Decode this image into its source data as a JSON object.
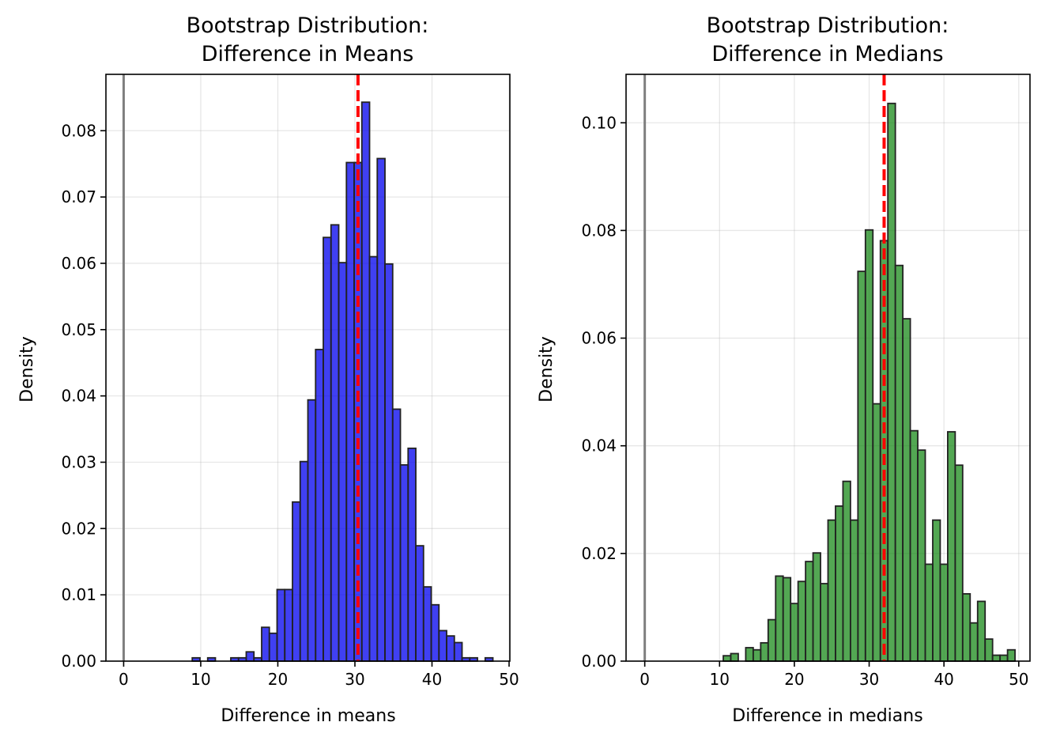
{
  "chart_data": [
    {
      "type": "bar",
      "title": [
        "Bootstrap Distribution:",
        "Difference in Means"
      ],
      "xlabel": "Difference in means",
      "ylabel": "Density",
      "xlim": [
        -2.3,
        50.1
      ],
      "ylim": [
        0,
        0.0885
      ],
      "xticks": [
        0,
        10,
        20,
        30,
        40,
        50
      ],
      "yticks": [
        0.0,
        0.01,
        0.02,
        0.03,
        0.04,
        0.05,
        0.06,
        0.07,
        0.08
      ],
      "yticks_decimals": 2,
      "grid": true,
      "bar_color": "#0000ee",
      "edge_color": "#222222",
      "bin_edges": [
        8.9,
        9.9,
        10.9,
        11.9,
        12.9,
        13.9,
        14.9,
        15.9,
        16.9,
        17.9,
        18.9,
        19.9,
        20.9,
        21.9,
        22.9,
        23.9,
        24.9,
        25.9,
        26.9,
        27.9,
        28.9,
        29.9,
        30.9,
        31.9,
        32.9,
        33.9,
        34.9,
        35.9,
        36.9,
        37.9,
        38.9,
        39.9,
        40.9,
        41.9,
        42.9,
        43.9,
        44.9,
        45.9,
        46.9,
        47.9
      ],
      "values": [
        0.0005,
        0,
        0.0005,
        0,
        0,
        0.0005,
        0.0005,
        0.0014,
        0.0005,
        0.0051,
        0.0042,
        0.0108,
        0.0108,
        0.024,
        0.0301,
        0.0394,
        0.047,
        0.0639,
        0.0658,
        0.0601,
        0.0752,
        0.0752,
        0.0843,
        0.061,
        0.0758,
        0.0599,
        0.038,
        0.0296,
        0.0321,
        0.0174,
        0.0112,
        0.0085,
        0.0046,
        0.0038,
        0.0028,
        0.0005,
        0.0005,
        0,
        0.0005
      ],
      "reference_line": {
        "x": 0,
        "color": "#7f7f7f"
      },
      "observed_line": {
        "x": 30.4,
        "color": "#ff0000"
      }
    },
    {
      "type": "bar",
      "title": [
        "Bootstrap Distribution:",
        "Difference in Medians"
      ],
      "xlabel": "Difference in medians",
      "ylabel": "Density",
      "xlim": [
        -2.5,
        51.5
      ],
      "ylim": [
        0,
        0.109
      ],
      "xticks": [
        0,
        10,
        20,
        30,
        40,
        50
      ],
      "yticks": [
        0.0,
        0.02,
        0.04,
        0.06,
        0.08,
        0.1
      ],
      "yticks_decimals": 2,
      "grid": true,
      "bar_color": "#1a8a1a",
      "edge_color": "#222222",
      "bin_edges": [
        10.5,
        11.5,
        12.5,
        13.5,
        14.5,
        15.5,
        16.5,
        17.5,
        18.5,
        19.5,
        20.5,
        21.5,
        22.5,
        23.5,
        24.5,
        25.5,
        26.5,
        27.5,
        28.5,
        29.5,
        30.5,
        31.5,
        32.5,
        33.5,
        34.5,
        35.5,
        36.5,
        37.5,
        38.5,
        39.5,
        40.5,
        41.5,
        42.5,
        43.5,
        44.5,
        45.5,
        46.5,
        47.5,
        48.5,
        49.5
      ],
      "values": [
        0.001,
        0.0014,
        0,
        0.0025,
        0.0021,
        0.0034,
        0.0077,
        0.0158,
        0.0155,
        0.0107,
        0.0148,
        0.0185,
        0.0201,
        0.0144,
        0.0262,
        0.0288,
        0.0334,
        0.0262,
        0.0724,
        0.0801,
        0.0478,
        0.0781,
        0.1036,
        0.0735,
        0.0636,
        0.0428,
        0.0392,
        0.018,
        0.0262,
        0.018,
        0.0426,
        0.0364,
        0.0125,
        0.0071,
        0.0111,
        0.0041,
        0.0011,
        0.0011,
        0.0021
      ],
      "reference_line": {
        "x": 0,
        "color": "#7f7f7f"
      },
      "observed_line": {
        "x": 32,
        "color": "#ff0000"
      }
    }
  ]
}
